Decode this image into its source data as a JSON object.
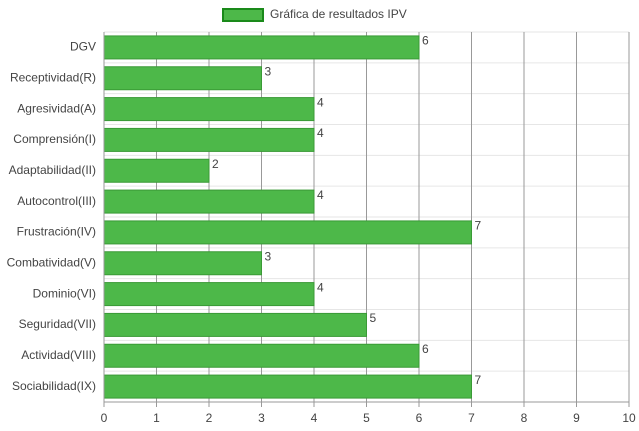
{
  "chart_data": {
    "type": "bar",
    "orientation": "horizontal",
    "categories": [
      "DGV",
      "Receptividad(R)",
      "Agresividad(A)",
      "Comprensión(I)",
      "Adaptabilidad(II)",
      "Autocontrol(III)",
      "Frustración(IV)",
      "Combatividad(V)",
      "Dominio(VI)",
      "Seguridad(VII)",
      "Actividad(VIII)",
      "Sociabilidad(IX)"
    ],
    "series": [
      {
        "name": "Gráfica de resultados IPV",
        "color": "#4db849",
        "values": [
          6,
          3,
          4,
          4,
          2,
          4,
          7,
          3,
          4,
          5,
          6,
          7
        ]
      }
    ],
    "xlim": [
      0,
      10
    ],
    "xticks": [
      0,
      1,
      2,
      3,
      4,
      5,
      6,
      7,
      8,
      9,
      10
    ],
    "grid": true,
    "legend": "top"
  }
}
